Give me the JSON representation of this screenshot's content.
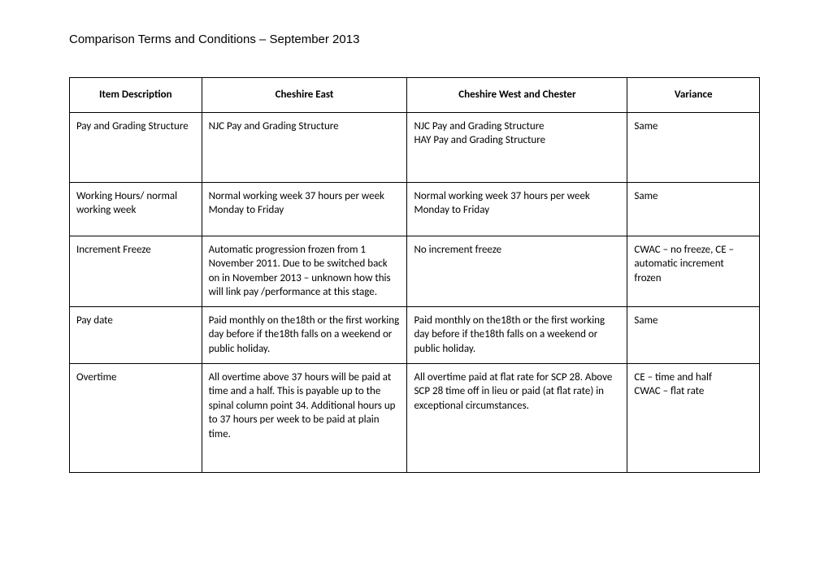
{
  "title": "Comparison Terms and Conditions – September 2013",
  "table": {
    "headers": [
      "Item Description",
      "Cheshire East",
      "Cheshire West and Chester",
      "Variance"
    ],
    "rows": [
      {
        "item": "Pay and Grading Structure",
        "east": "NJC Pay and Grading Structure",
        "west": " NJC Pay and Grading Structure\nHAY Pay and Grading Structure",
        "variance": "Same"
      },
      {
        "item": "Working Hours/ normal working week",
        "east": "Normal working week 37 hours per week Monday to Friday",
        "west": "Normal working week 37 hours per week Monday to Friday",
        "variance": "Same"
      },
      {
        "item": "Increment Freeze",
        "east": "Automatic progression frozen from 1 November 2011. Due to be switched back on in November 2013 – unknown how this will link pay /performance at this stage.",
        "west": "No increment freeze",
        "variance": "CWAC – no freeze, CE – automatic increment frozen"
      },
      {
        "item": "Pay date",
        "east": "Paid monthly on the18th or the first working day before if the18th falls on a weekend or public holiday.",
        "west": "Paid monthly on the18th or the first working day before if the18th falls on a weekend or public holiday.",
        "variance": "Same"
      },
      {
        "item": "Overtime",
        "east": "All overtime above 37 hours will be paid at time and a half.  This is payable up to the spinal column point 34.  Additional hours up to 37 hours per week to be paid at plain time.",
        "west": "All overtime paid at flat rate for SCP 28. Above SCP 28 time off in lieu or paid (at flat rate) in exceptional circumstances.",
        "variance": "CE – time and half\nCWAC – flat rate"
      }
    ]
  }
}
